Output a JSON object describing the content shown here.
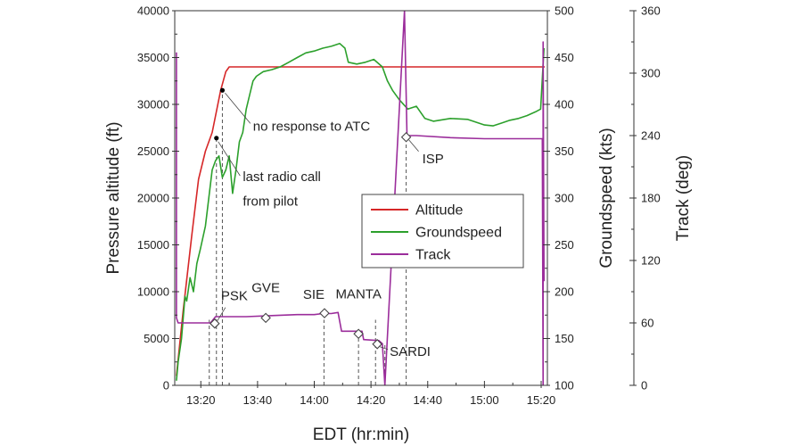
{
  "chart_data": {
    "type": "line",
    "xlabel": "EDT (hr:min)",
    "ylabel_left": "Pressure altitude (ft)",
    "ylabel_right1": "Groundspeed (kts)",
    "ylabel_right2": "Track (deg)",
    "x_range_min": [
      13.18,
      15.37
    ],
    "x_ticks": [
      {
        "v": 13.3333,
        "label": "13:20"
      },
      {
        "v": 13.6667,
        "label": "13:40"
      },
      {
        "v": 14.0,
        "label": "14:00"
      },
      {
        "v": 14.3333,
        "label": "14:20"
      },
      {
        "v": 14.6667,
        "label": "14:40"
      },
      {
        "v": 15.0,
        "label": "15:00"
      },
      {
        "v": 15.3333,
        "label": "15:20"
      }
    ],
    "ylim_altitude": [
      0,
      40000
    ],
    "altitude_ticks": [
      "0",
      "5000",
      "10000",
      "15000",
      "20000",
      "25000",
      "30000",
      "35000",
      "40000"
    ],
    "ylim_groundspeed": [
      100,
      500
    ],
    "groundspeed_ticks": [
      "100",
      "150",
      "200",
      "250",
      "300",
      "350",
      "400",
      "450",
      "500"
    ],
    "ylim_track": [
      0,
      360
    ],
    "track_ticks": [
      "0",
      "60",
      "120",
      "180",
      "240",
      "300",
      "360"
    ],
    "legend": {
      "position": "right-center",
      "entries": [
        "Altitude",
        "Groundspeed",
        "Track"
      ]
    },
    "colors": {
      "Altitude": "#d62728",
      "Groundspeed": "#2ca02c",
      "Track": "#9b2d9b"
    },
    "series": [
      {
        "name": "Altitude",
        "axis": "altitude",
        "points": [
          [
            13.19,
            1000
          ],
          [
            13.23,
            8000
          ],
          [
            13.28,
            16000
          ],
          [
            13.32,
            22000
          ],
          [
            13.36,
            25000
          ],
          [
            13.4,
            27000
          ],
          [
            13.45,
            31500
          ],
          [
            13.48,
            33500
          ],
          [
            13.5,
            34000
          ],
          [
            15.33,
            34000
          ],
          [
            15.355,
            34000
          ]
        ]
      },
      {
        "name": "Groundspeed",
        "axis": "groundspeed",
        "points": [
          [
            13.19,
            105
          ],
          [
            13.2,
            125
          ],
          [
            13.22,
            150
          ],
          [
            13.24,
            195
          ],
          [
            13.25,
            190
          ],
          [
            13.27,
            215
          ],
          [
            13.29,
            200
          ],
          [
            13.31,
            230
          ],
          [
            13.33,
            245
          ],
          [
            13.36,
            270
          ],
          [
            13.38,
            300
          ],
          [
            13.4,
            330
          ],
          [
            13.42,
            340
          ],
          [
            13.44,
            345
          ],
          [
            13.46,
            322
          ],
          [
            13.48,
            330
          ],
          [
            13.5,
            345
          ],
          [
            13.52,
            305
          ],
          [
            13.54,
            330
          ],
          [
            13.56,
            360
          ],
          [
            13.58,
            370
          ],
          [
            13.6,
            395
          ],
          [
            13.62,
            410
          ],
          [
            13.64,
            425
          ],
          [
            13.66,
            430
          ],
          [
            13.7,
            435
          ],
          [
            13.75,
            437
          ],
          [
            13.8,
            440
          ],
          [
            13.85,
            445
          ],
          [
            13.9,
            450
          ],
          [
            13.95,
            455
          ],
          [
            14.0,
            457
          ],
          [
            14.05,
            460
          ],
          [
            14.1,
            462
          ],
          [
            14.15,
            465
          ],
          [
            14.18,
            460
          ],
          [
            14.2,
            445
          ],
          [
            14.25,
            443
          ],
          [
            14.3,
            445
          ],
          [
            14.35,
            448
          ],
          [
            14.4,
            440
          ],
          [
            14.43,
            425
          ],
          [
            14.46,
            415
          ],
          [
            14.5,
            405
          ],
          [
            14.55,
            395
          ],
          [
            14.6,
            398
          ],
          [
            14.65,
            385
          ],
          [
            14.7,
            382
          ],
          [
            14.8,
            385
          ],
          [
            14.9,
            384
          ],
          [
            15.0,
            378
          ],
          [
            15.05,
            377
          ],
          [
            15.1,
            380
          ],
          [
            15.15,
            383
          ],
          [
            15.2,
            385
          ],
          [
            15.25,
            388
          ],
          [
            15.3,
            392
          ],
          [
            15.33,
            395
          ],
          [
            15.35,
            460
          ]
        ]
      },
      {
        "name": "Track",
        "axis": "track",
        "points": [
          [
            13.19,
            320
          ],
          [
            13.19,
            65
          ],
          [
            13.2,
            60
          ],
          [
            13.3,
            60
          ],
          [
            13.39,
            60
          ],
          [
            13.42,
            66
          ],
          [
            13.6,
            66
          ],
          [
            13.75,
            67
          ],
          [
            13.9,
            68
          ],
          [
            14.0,
            68
          ],
          [
            14.05,
            69
          ],
          [
            14.1,
            69
          ],
          [
            14.14,
            70
          ],
          [
            14.16,
            52
          ],
          [
            14.28,
            52
          ],
          [
            14.29,
            44
          ],
          [
            14.38,
            43
          ],
          [
            14.4,
            40
          ],
          [
            14.415,
            0
          ],
          [
            14.53,
            360
          ],
          [
            14.545,
            240
          ],
          [
            14.6,
            240
          ],
          [
            14.8,
            238
          ],
          [
            15.0,
            237
          ],
          [
            15.2,
            237
          ],
          [
            15.34,
            237
          ],
          [
            15.345,
            0
          ],
          [
            15.345,
            330
          ],
          [
            15.35,
            100
          ]
        ]
      }
    ],
    "waypoints": [
      {
        "label": "PSK",
        "x": 13.415,
        "y": 6600,
        "label_side": "above"
      },
      {
        "label": "GVE",
        "x": 13.715,
        "y": 7200,
        "label_side": "above"
      },
      {
        "label": "SIE",
        "x": 14.06,
        "y": 7700,
        "label_side": "above-left"
      },
      {
        "label": "MANTA",
        "x": 14.26,
        "y": 5500,
        "label_side": "above"
      },
      {
        "label": "SARDI",
        "x": 14.37,
        "y": 4400,
        "label_side": "right"
      },
      {
        "label": "ISP",
        "x": 14.54,
        "y": 26500,
        "label_side": "right"
      }
    ],
    "markers": [
      {
        "x": 13.425,
        "y": 26400
      },
      {
        "x": 13.46,
        "y": 31500
      }
    ],
    "dashed_times": [
      13.383,
      13.425,
      13.46,
      14.057,
      14.26,
      14.36,
      14.415,
      14.54
    ],
    "annotations": [
      {
        "text": "no response to ATC",
        "x": 13.64,
        "y": 27200
      },
      {
        "text": "last radio call",
        "x": 13.58,
        "y": 21800
      },
      {
        "text": "from pilot",
        "x": 13.58,
        "y": 19200
      }
    ]
  }
}
